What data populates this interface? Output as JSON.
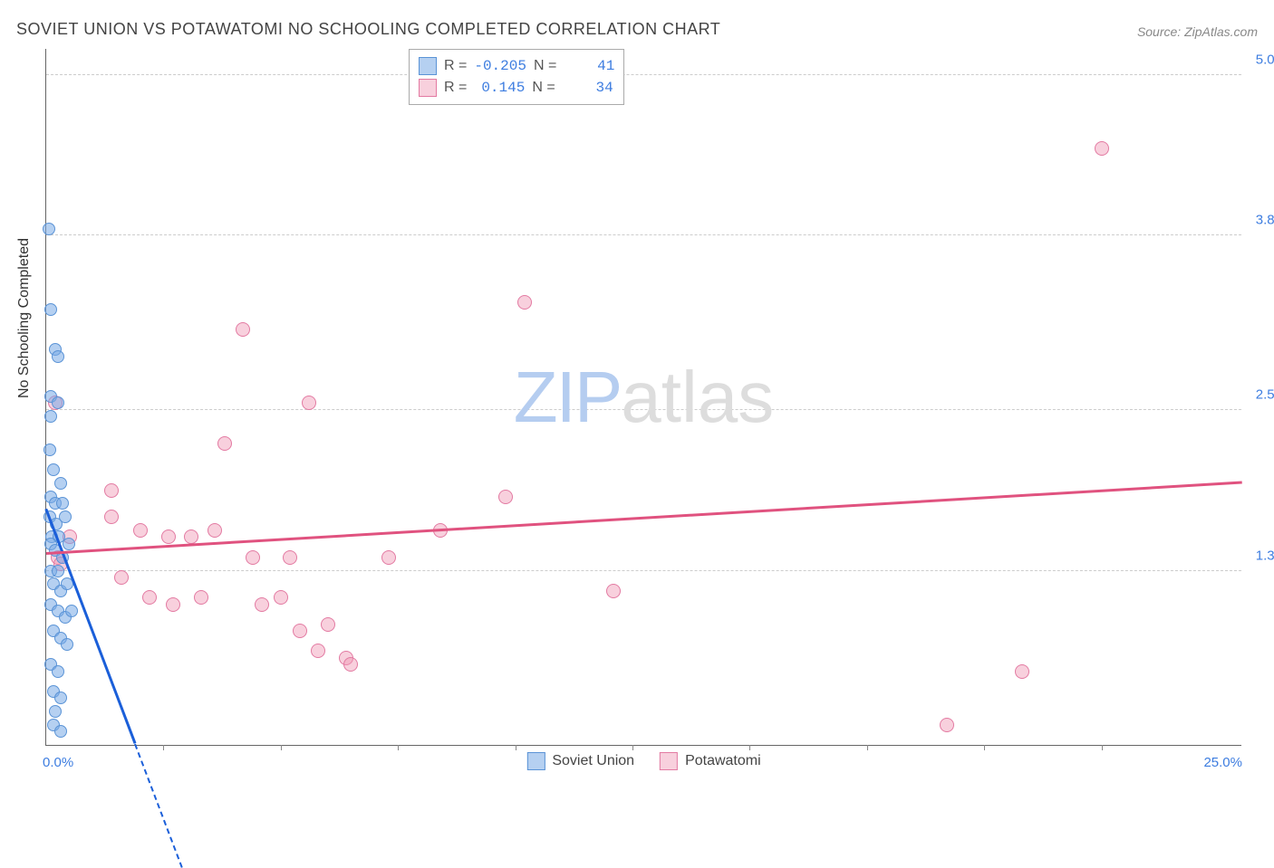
{
  "header": {
    "title": "SOVIET UNION VS POTAWATOMI NO SCHOOLING COMPLETED CORRELATION CHART",
    "source": "Source: ZipAtlas.com"
  },
  "watermark": {
    "zip": "ZIP",
    "atlas": "atlas"
  },
  "yaxis": {
    "title": "No Schooling Completed",
    "min": 0.0,
    "max": 5.2,
    "gridlines": [
      {
        "value": 1.3,
        "label": "1.3%"
      },
      {
        "value": 2.5,
        "label": "2.5%"
      },
      {
        "value": 3.8,
        "label": "3.8%"
      },
      {
        "value": 5.0,
        "label": "5.0%"
      }
    ]
  },
  "xaxis": {
    "min": 0.0,
    "max": 25.5,
    "ticks": [
      2.5,
      5.0,
      7.5,
      10.0,
      12.5,
      15.0,
      17.5,
      20.0,
      22.5
    ],
    "labels": {
      "first": "0.0%",
      "last": "25.0%"
    }
  },
  "legend": {
    "series_a_label": "Soviet Union",
    "series_b_label": "Potawatomi"
  },
  "stats": {
    "r_label": "R =",
    "n_label": "N =",
    "series_a": {
      "r": "-0.205",
      "n": "41"
    },
    "series_b": {
      "r": "0.145",
      "n": "34"
    }
  },
  "series_a": {
    "name": "Soviet Union",
    "color_fill": "rgba(120,170,230,0.55)",
    "color_stroke": "#5a93d6",
    "marker_size": 14,
    "trend": {
      "color": "#1b5fd9",
      "x1": 0.0,
      "y1": 1.75,
      "x2": 1.9,
      "y2": 0.0,
      "dash_extend_x2": 2.9
    },
    "points": [
      {
        "x": 0.05,
        "y": 3.85
      },
      {
        "x": 0.1,
        "y": 3.25
      },
      {
        "x": 0.2,
        "y": 2.95
      },
      {
        "x": 0.25,
        "y": 2.9
      },
      {
        "x": 0.1,
        "y": 2.6
      },
      {
        "x": 0.25,
        "y": 2.55
      },
      {
        "x": 0.1,
        "y": 2.45
      },
      {
        "x": 0.08,
        "y": 2.2
      },
      {
        "x": 0.15,
        "y": 2.05
      },
      {
        "x": 0.3,
        "y": 1.95
      },
      {
        "x": 0.1,
        "y": 1.85
      },
      {
        "x": 0.2,
        "y": 1.8
      },
      {
        "x": 0.35,
        "y": 1.8
      },
      {
        "x": 0.08,
        "y": 1.7
      },
      {
        "x": 0.22,
        "y": 1.65
      },
      {
        "x": 0.4,
        "y": 1.7
      },
      {
        "x": 0.12,
        "y": 1.55
      },
      {
        "x": 0.28,
        "y": 1.55
      },
      {
        "x": 0.1,
        "y": 1.5
      },
      {
        "x": 0.2,
        "y": 1.45
      },
      {
        "x": 0.35,
        "y": 1.4
      },
      {
        "x": 0.48,
        "y": 1.5
      },
      {
        "x": 0.1,
        "y": 1.3
      },
      {
        "x": 0.25,
        "y": 1.3
      },
      {
        "x": 0.15,
        "y": 1.2
      },
      {
        "x": 0.3,
        "y": 1.15
      },
      {
        "x": 0.45,
        "y": 1.2
      },
      {
        "x": 0.1,
        "y": 1.05
      },
      {
        "x": 0.25,
        "y": 1.0
      },
      {
        "x": 0.4,
        "y": 0.95
      },
      {
        "x": 0.55,
        "y": 1.0
      },
      {
        "x": 0.15,
        "y": 0.85
      },
      {
        "x": 0.3,
        "y": 0.8
      },
      {
        "x": 0.45,
        "y": 0.75
      },
      {
        "x": 0.1,
        "y": 0.6
      },
      {
        "x": 0.25,
        "y": 0.55
      },
      {
        "x": 0.15,
        "y": 0.4
      },
      {
        "x": 0.3,
        "y": 0.35
      },
      {
        "x": 0.2,
        "y": 0.25
      },
      {
        "x": 0.15,
        "y": 0.15
      },
      {
        "x": 0.3,
        "y": 0.1
      }
    ]
  },
  "series_b": {
    "name": "Potawatomi",
    "color_fill": "rgba(240,150,180,0.45)",
    "color_stroke": "#e37aa2",
    "marker_size": 16,
    "trend": {
      "color": "#e0527f",
      "x1": 0.0,
      "y1": 1.42,
      "x2": 25.5,
      "y2": 1.95
    },
    "points": [
      {
        "x": 0.2,
        "y": 2.55
      },
      {
        "x": 0.25,
        "y": 1.4
      },
      {
        "x": 0.3,
        "y": 1.35
      },
      {
        "x": 1.4,
        "y": 1.9
      },
      {
        "x": 1.4,
        "y": 1.7
      },
      {
        "x": 1.6,
        "y": 1.25
      },
      {
        "x": 2.2,
        "y": 1.1
      },
      {
        "x": 2.0,
        "y": 1.6
      },
      {
        "x": 2.6,
        "y": 1.55
      },
      {
        "x": 2.7,
        "y": 1.05
      },
      {
        "x": 3.1,
        "y": 1.55
      },
      {
        "x": 3.3,
        "y": 1.1
      },
      {
        "x": 3.6,
        "y": 1.6
      },
      {
        "x": 3.8,
        "y": 2.25
      },
      {
        "x": 4.2,
        "y": 3.1
      },
      {
        "x": 4.4,
        "y": 1.4
      },
      {
        "x": 4.6,
        "y": 1.05
      },
      {
        "x": 5.0,
        "y": 1.1
      },
      {
        "x": 5.2,
        "y": 1.4
      },
      {
        "x": 5.4,
        "y": 0.85
      },
      {
        "x": 5.6,
        "y": 2.55
      },
      {
        "x": 5.8,
        "y": 0.7
      },
      {
        "x": 6.0,
        "y": 0.9
      },
      {
        "x": 6.4,
        "y": 0.65
      },
      {
        "x": 6.5,
        "y": 0.6
      },
      {
        "x": 7.3,
        "y": 1.4
      },
      {
        "x": 8.4,
        "y": 1.6
      },
      {
        "x": 9.8,
        "y": 1.85
      },
      {
        "x": 10.2,
        "y": 3.3
      },
      {
        "x": 12.1,
        "y": 1.15
      },
      {
        "x": 19.2,
        "y": 0.15
      },
      {
        "x": 20.8,
        "y": 0.55
      },
      {
        "x": 22.5,
        "y": 4.45
      },
      {
        "x": 0.5,
        "y": 1.55
      }
    ]
  },
  "colors": {
    "axis": "#666",
    "grid": "#ccc",
    "tick_text": "#3d7de0"
  }
}
